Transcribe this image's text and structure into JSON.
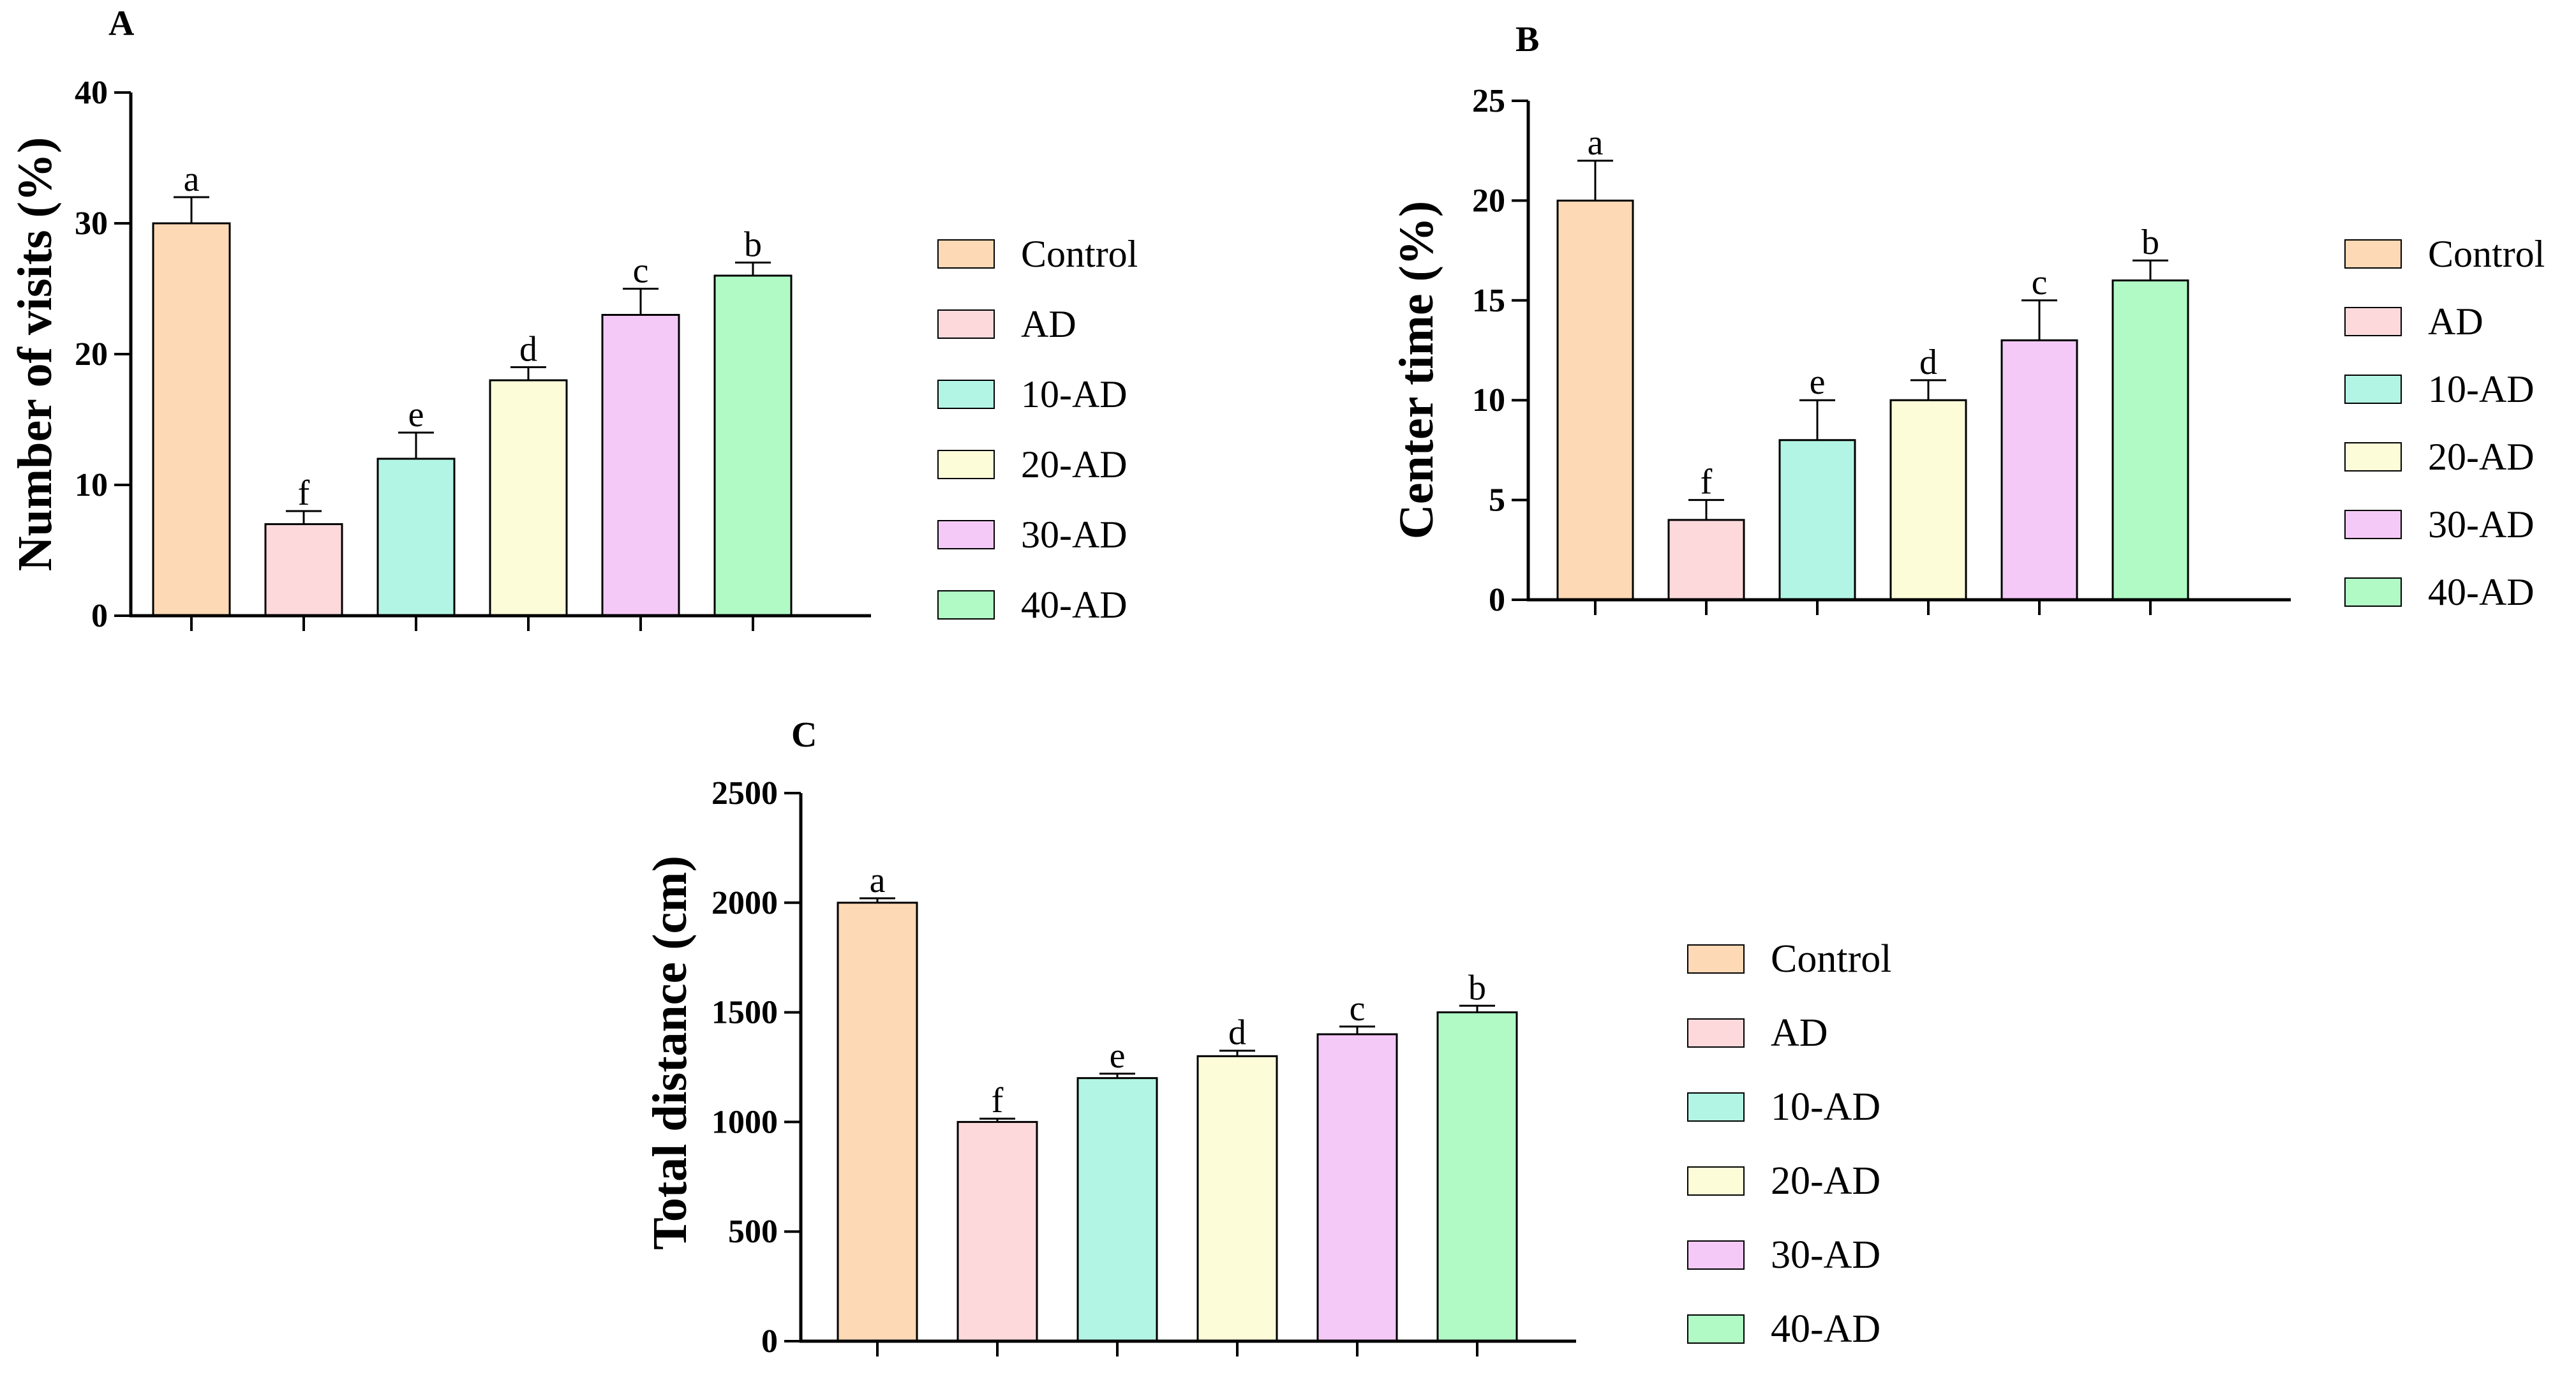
{
  "colors": {
    "Control": "#fdd9b5",
    "AD": "#fdd9dc",
    "10-AD": "#b3f5e4",
    "20-AD": "#fdfcd9",
    "30-AD": "#f5c9f7",
    "40-AD": "#b1fac6",
    "stroke": "#000000"
  },
  "chart_data": [
    {
      "type": "bar",
      "panel": "A",
      "title": "",
      "xlabel": "",
      "ylabel": "Number of visits (%)",
      "ylim": [
        0,
        40
      ],
      "yticks": [
        "0",
        "10",
        "20",
        "30",
        "40"
      ],
      "categories": [
        "Control",
        "AD",
        "10-AD",
        "20-AD",
        "30-AD",
        "40-AD"
      ],
      "values": [
        30,
        7,
        12,
        18,
        23,
        26
      ],
      "errors": [
        2,
        1,
        2,
        1,
        2,
        1
      ],
      "annotations": [
        "a",
        "f",
        "e",
        "d",
        "c",
        "b"
      ],
      "legend": [
        "Control",
        "AD",
        "10-AD",
        "20-AD",
        "30-AD",
        "40-AD"
      ]
    },
    {
      "type": "bar",
      "panel": "B",
      "title": "",
      "xlabel": "",
      "ylabel": "Center time (%)",
      "ylim": [
        0,
        25
      ],
      "yticks": [
        "0",
        "5",
        "10",
        "15",
        "20",
        "25"
      ],
      "categories": [
        "Control",
        "AD",
        "10-AD",
        "20-AD",
        "30-AD",
        "40-AD"
      ],
      "values": [
        20,
        4,
        8,
        10,
        13,
        16
      ],
      "errors": [
        2,
        1,
        2,
        1,
        2,
        1
      ],
      "annotations": [
        "a",
        "f",
        "e",
        "d",
        "c",
        "b"
      ],
      "legend": [
        "Control",
        "AD",
        "10-AD",
        "20-AD",
        "30-AD",
        "40-AD"
      ]
    },
    {
      "type": "bar",
      "panel": "C",
      "title": "",
      "xlabel": "",
      "ylabel": "Total distance (cm)",
      "ylim": [
        0,
        2500
      ],
      "yticks": [
        "0",
        "500",
        "1000",
        "1500",
        "2000",
        "2500"
      ],
      "categories": [
        "Control",
        "AD",
        "10-AD",
        "20-AD",
        "30-AD",
        "40-AD"
      ],
      "values": [
        2000,
        1000,
        1200,
        1300,
        1400,
        1500
      ],
      "errors": [
        20,
        15,
        20,
        25,
        35,
        30
      ],
      "annotations": [
        "a",
        "f",
        "e",
        "d",
        "c",
        "b"
      ],
      "legend": [
        "Control",
        "AD",
        "10-AD",
        "20-AD",
        "30-AD",
        "40-AD"
      ]
    }
  ]
}
